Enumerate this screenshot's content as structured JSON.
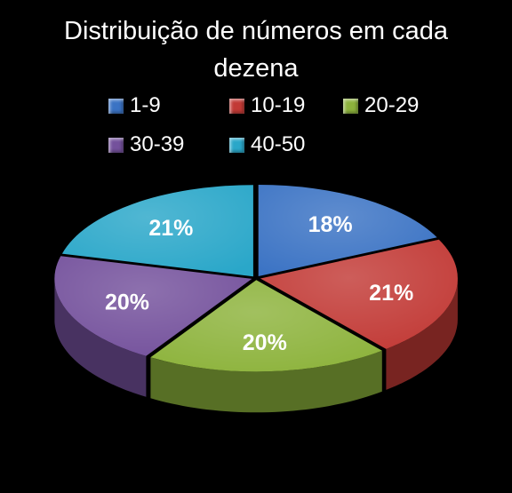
{
  "chart_data": {
    "type": "pie",
    "title": "Distribuição de números em cada dezena",
    "categories": [
      "1-9",
      "10-19",
      "20-29",
      "30-39",
      "40-50"
    ],
    "values": [
      18,
      21,
      20,
      20,
      21
    ],
    "value_labels": [
      "18%",
      "21%",
      "20%",
      "20%",
      "21%"
    ],
    "colors": [
      "#3b73c4",
      "#c23a36",
      "#8db33c",
      "#74519c",
      "#2aa7c9"
    ],
    "legend_position": "top",
    "style": "3d-exploded-top"
  }
}
